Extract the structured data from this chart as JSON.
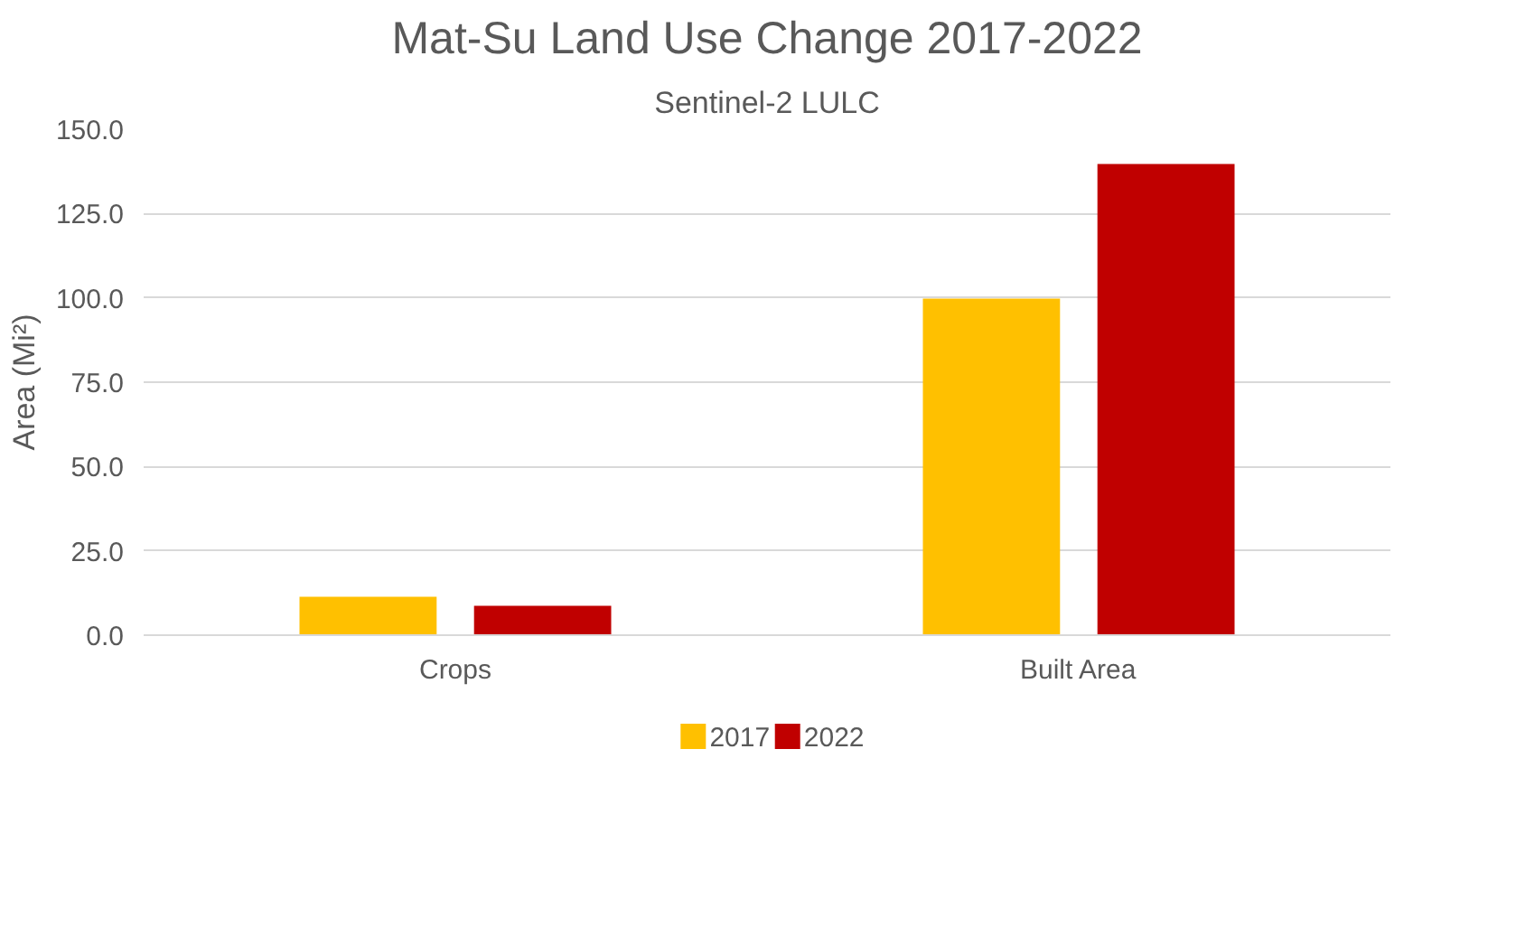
{
  "chart_data": {
    "type": "bar",
    "title": "Mat-Su Land Use Change 2017-2022",
    "subtitle": "Sentinel-2 LULC",
    "ylabel": "Area (Mi²)",
    "categories": [
      "Crops",
      "Built Area"
    ],
    "series": [
      {
        "name": "2017",
        "color": "#ffc000",
        "values": [
          11.4,
          99.8
        ]
      },
      {
        "name": "2022",
        "color": "#c00000",
        "values": [
          8.7,
          139.7
        ]
      }
    ],
    "ylim": [
      0,
      150
    ],
    "yticks": [
      {
        "value": 0,
        "label": "0.0"
      },
      {
        "value": 25,
        "label": "25.0"
      },
      {
        "value": 50,
        "label": "50.0"
      },
      {
        "value": 75,
        "label": "75.0"
      },
      {
        "value": 100,
        "label": "100.0"
      },
      {
        "value": 125,
        "label": "125.0"
      },
      {
        "value": 150,
        "label": "150.0"
      }
    ],
    "grid": "y",
    "legend": "bottom"
  }
}
